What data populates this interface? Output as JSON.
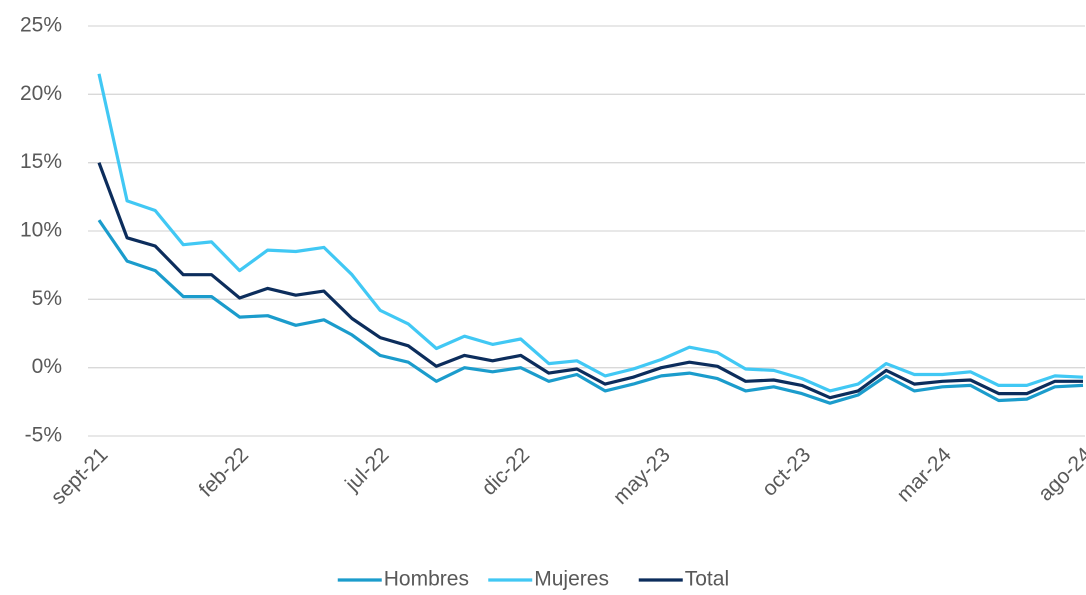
{
  "chart_data": {
    "type": "line",
    "categories": [
      "sept-21",
      null,
      null,
      null,
      null,
      "feb-22",
      null,
      null,
      null,
      null,
      "jul-22",
      null,
      null,
      null,
      null,
      "dic-22",
      null,
      null,
      null,
      null,
      "may-23",
      null,
      null,
      null,
      null,
      "oct-23",
      null,
      null,
      null,
      null,
      "mar-24",
      null,
      null,
      null,
      null,
      "ago-24"
    ],
    "series": [
      {
        "name": "Hombres",
        "color": "#1b9ccc",
        "values": [
          10.8,
          7.8,
          7.1,
          5.2,
          5.2,
          3.7,
          3.8,
          3.1,
          3.5,
          2.4,
          0.9,
          0.4,
          -1.0,
          0.0,
          -0.3,
          0.0,
          -1.0,
          -0.5,
          -1.7,
          -1.2,
          -0.6,
          -0.4,
          -0.8,
          -1.7,
          -1.4,
          -1.9,
          -2.6,
          -2.0,
          -0.6,
          -1.7,
          -1.4,
          -1.3,
          -2.4,
          -2.3,
          -1.4,
          -1.3
        ]
      },
      {
        "name": "Mujeres",
        "color": "#41c8f4",
        "values": [
          21.5,
          12.2,
          11.5,
          9.0,
          9.2,
          7.1,
          8.6,
          8.5,
          8.8,
          6.8,
          4.2,
          3.2,
          1.4,
          2.3,
          1.7,
          2.1,
          0.3,
          0.5,
          -0.6,
          -0.1,
          0.6,
          1.5,
          1.1,
          -0.1,
          -0.2,
          -0.8,
          -1.7,
          -1.2,
          0.3,
          -0.5,
          -0.5,
          -0.3,
          -1.3,
          -1.3,
          -0.6,
          -0.7
        ]
      },
      {
        "name": "Total",
        "color": "#0c2d5c",
        "values": [
          15.0,
          9.5,
          8.9,
          6.8,
          6.8,
          5.1,
          5.8,
          5.3,
          5.6,
          3.6,
          2.2,
          1.6,
          0.1,
          0.9,
          0.5,
          0.9,
          -0.4,
          -0.1,
          -1.2,
          -0.7,
          0.0,
          0.4,
          0.1,
          -1.0,
          -0.9,
          -1.3,
          -2.2,
          -1.7,
          -0.2,
          -1.2,
          -1.0,
          -0.9,
          -1.9,
          -1.9,
          -1.0,
          -1.0
        ]
      }
    ],
    "ylim": [
      -5,
      25
    ],
    "yticks": [
      {
        "value": -5,
        "label": "-5%"
      },
      {
        "value": 0,
        "label": "0%"
      },
      {
        "value": 5,
        "label": "5%"
      },
      {
        "value": 10,
        "label": "10%"
      },
      {
        "value": 15,
        "label": "15%"
      },
      {
        "value": 20,
        "label": "20%"
      },
      {
        "value": 25,
        "label": "25%"
      }
    ],
    "grid": true,
    "legend": "bottom"
  }
}
